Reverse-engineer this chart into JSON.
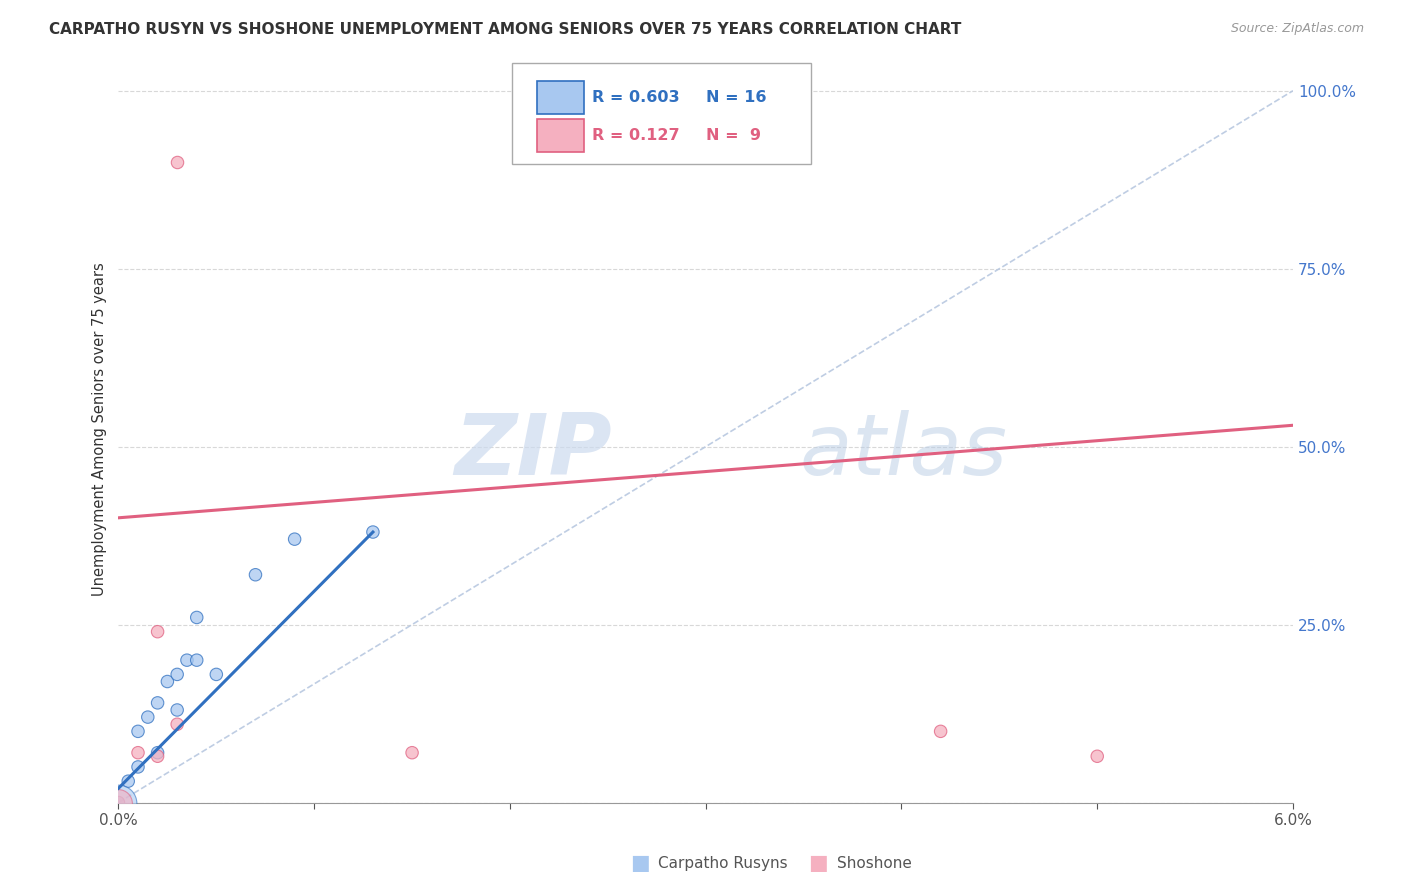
{
  "title": "CARPATHO RUSYN VS SHOSHONE UNEMPLOYMENT AMONG SENIORS OVER 75 YEARS CORRELATION CHART",
  "source": "Source: ZipAtlas.com",
  "ylabel": "Unemployment Among Seniors over 75 years",
  "xlim": [
    0.0,
    0.06
  ],
  "ylim": [
    0.0,
    1.05
  ],
  "xticks": [
    0.0,
    0.01,
    0.02,
    0.03,
    0.04,
    0.05,
    0.06
  ],
  "xticklabels": [
    "0.0%",
    "",
    "",
    "",
    "",
    "",
    "6.0%"
  ],
  "yticks": [
    0.0,
    0.25,
    0.5,
    0.75,
    1.0
  ],
  "yticklabels": [
    "",
    "25.0%",
    "50.0%",
    "75.0%",
    "100.0%"
  ],
  "legend_r_carpatho": "0.603",
  "legend_n_carpatho": "16",
  "legend_r_shoshone": "0.127",
  "legend_n_shoshone": " 9",
  "carpatho_color": "#a8c8f0",
  "shoshone_color": "#f5b0c0",
  "trendline_carpatho_color": "#3070c0",
  "trendline_shoshone_color": "#e06080",
  "diagonal_color": "#b8c8e0",
  "watermark_zip": "ZIP",
  "watermark_atlas": "atlas",
  "carpatho_x": [
    0.0005,
    0.001,
    0.001,
    0.0015,
    0.002,
    0.002,
    0.0025,
    0.003,
    0.003,
    0.0035,
    0.004,
    0.004,
    0.005,
    0.007,
    0.009,
    0.013
  ],
  "carpatho_y": [
    0.03,
    0.05,
    0.1,
    0.12,
    0.07,
    0.14,
    0.17,
    0.13,
    0.18,
    0.2,
    0.2,
    0.26,
    0.18,
    0.32,
    0.37,
    0.38
  ],
  "carpatho_size": [
    80,
    80,
    80,
    80,
    80,
    80,
    80,
    80,
    80,
    80,
    80,
    80,
    80,
    80,
    80,
    80
  ],
  "carpatho_large_x": [
    0.0
  ],
  "carpatho_large_y": [
    0.0
  ],
  "carpatho_large_size": [
    700
  ],
  "shoshone_x": [
    0.0,
    0.001,
    0.002,
    0.002,
    0.003,
    0.015,
    0.042,
    0.05
  ],
  "shoshone_y": [
    0.0,
    0.07,
    0.065,
    0.24,
    0.11,
    0.07,
    0.1,
    0.065
  ],
  "shoshone_size": [
    80,
    80,
    80,
    80,
    80,
    80,
    80,
    80
  ],
  "shoshone_large_x": [
    0.0
  ],
  "shoshone_large_y": [
    0.0
  ],
  "shoshone_large_size": [
    400
  ],
  "shoshone_high_x": [
    0.003
  ],
  "shoshone_high_y": [
    0.9
  ],
  "shoshone_high_size": [
    80
  ],
  "trendline_carpatho_x0": 0.0,
  "trendline_carpatho_x1": 0.013,
  "trendline_carpatho_y0": 0.02,
  "trendline_carpatho_y1": 0.38,
  "trendline_shoshone_x0": 0.0,
  "trendline_shoshone_x1": 0.06,
  "trendline_shoshone_y0": 0.4,
  "trendline_shoshone_y1": 0.53,
  "background_color": "#ffffff",
  "grid_color": "#d8d8d8"
}
